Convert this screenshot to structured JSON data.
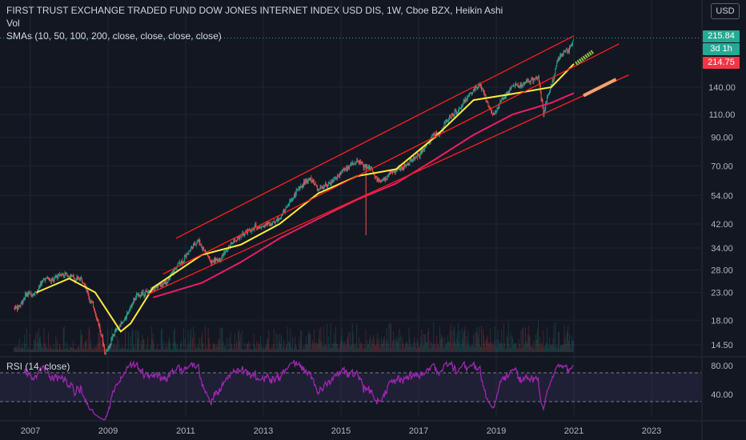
{
  "header": {
    "title": "FIRST TRUST EXCHANGE TRADED FUND DOW JONES INTERNET INDEX USD DIS, 1W, Cboe BZX, Heikin Ashi",
    "volume_label": "Vol",
    "sma_label": "SMAs (10, 50, 100, 200, close, close, close, close)",
    "currency": "USD"
  },
  "price_labels": {
    "last_price": "215.84",
    "countdown": "3d 1h",
    "sma_value": "214.75"
  },
  "rsi": {
    "label": "RSI (14, close)",
    "ticks": [
      "80.00",
      "40.00"
    ]
  },
  "colors": {
    "background": "#131722",
    "up_candle": "#26a69a",
    "down_candle": "#ef5350",
    "sma_yellow": "#ffeb3b",
    "sma_pink": "#e91e63",
    "trendline": "#ff1f1f",
    "rsi_line": "#9c27b0",
    "rsi_band": "#7e57c2"
  },
  "chart_data": {
    "type": "candlestick",
    "scale": "log",
    "x_ticks": [
      "2007",
      "2009",
      "2011",
      "2013",
      "2015",
      "2017",
      "2019",
      "2021",
      "2023"
    ],
    "y_ticks": [
      14.5,
      18.0,
      23.0,
      28.0,
      34.0,
      42.0,
      54.0,
      70.0,
      90.0,
      110.0,
      140.0
    ],
    "y_tick_labels": [
      "14.50",
      "18.00",
      "23.00",
      "28.00",
      "34.00",
      "42.00",
      "54.00",
      "70.00",
      "90.00",
      "110.00",
      "140.00"
    ],
    "price_path": [
      [
        "2006-08-01",
        20
      ],
      [
        "2007-06-01",
        26
      ],
      [
        "2007-11-01",
        27
      ],
      [
        "2008-05-01",
        26
      ],
      [
        "2008-10-01",
        18
      ],
      [
        "2008-12-01",
        13.5
      ],
      [
        "2009-03-01",
        16
      ],
      [
        "2009-10-01",
        22
      ],
      [
        "2010-06-01",
        24
      ],
      [
        "2011-05-01",
        37
      ],
      [
        "2011-09-01",
        30
      ],
      [
        "2012-04-01",
        36
      ],
      [
        "2013-06-01",
        45
      ],
      [
        "2014-03-01",
        64
      ],
      [
        "2014-06-01",
        55
      ],
      [
        "2015-07-01",
        73
      ],
      [
        "2016-02-01",
        60
      ],
      [
        "2017-03-01",
        82
      ],
      [
        "2018-08-01",
        145
      ],
      [
        "2018-12-01",
        112
      ],
      [
        "2019-06-01",
        140
      ],
      [
        "2020-02-01",
        150
      ],
      [
        "2020-03-20",
        110
      ],
      [
        "2020-08-01",
        175
      ],
      [
        "2021-01-01",
        215.84
      ]
    ],
    "sma_yellow": [
      [
        "2007-03-01",
        23
      ],
      [
        "2008-01-01",
        26
      ],
      [
        "2008-09-01",
        23
      ],
      [
        "2009-05-01",
        16.3
      ],
      [
        "2009-08-01",
        17.5
      ],
      [
        "2010-03-01",
        24
      ],
      [
        "2011-06-01",
        32
      ],
      [
        "2012-06-01",
        35
      ],
      [
        "2013-06-01",
        42
      ],
      [
        "2014-06-01",
        55
      ],
      [
        "2015-06-01",
        64
      ],
      [
        "2016-06-01",
        68
      ],
      [
        "2017-06-01",
        90
      ],
      [
        "2018-06-01",
        125
      ],
      [
        "2019-06-01",
        132
      ],
      [
        "2020-06-01",
        140
      ],
      [
        "2021-01-01",
        172
      ]
    ],
    "sma_pink": [
      [
        "2010-03-01",
        22
      ],
      [
        "2011-06-01",
        25
      ],
      [
        "2012-06-01",
        30
      ],
      [
        "2013-06-01",
        37
      ],
      [
        "2014-06-01",
        44
      ],
      [
        "2015-06-01",
        52
      ],
      [
        "2016-06-01",
        60
      ],
      [
        "2017-06-01",
        74
      ],
      [
        "2018-06-01",
        92
      ],
      [
        "2019-06-01",
        110
      ],
      [
        "2020-06-01",
        122
      ],
      [
        "2021-01-01",
        133
      ]
    ],
    "trendlines": [
      {
        "from": [
          "2010-10-01",
          37
        ],
        "to": [
          "2021-01-01",
          220
        ]
      },
      {
        "from": [
          "2010-06-01",
          27
        ],
        "to": [
          "2022-03-01",
          205
        ]
      },
      {
        "from": [
          "2010-01-01",
          22.5
        ],
        "to": [
          "2022-06-01",
          156
        ]
      }
    ],
    "rsi_levels": [
      70,
      30
    ],
    "rsi_ticks": [
      80,
      40
    ]
  }
}
